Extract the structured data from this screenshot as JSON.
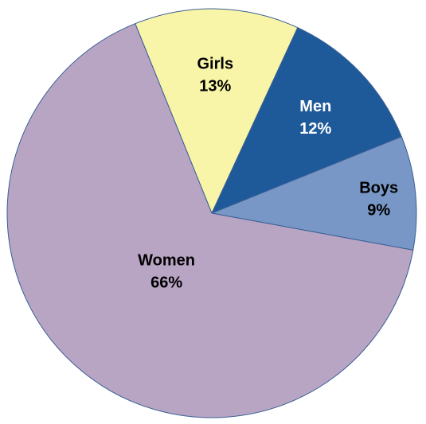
{
  "chart_data": {
    "type": "pie",
    "slices": [
      {
        "label": "Girls",
        "value": 13,
        "value_label": "13%",
        "color": "#f8f5a8",
        "text_color": "#000000"
      },
      {
        "label": "Men",
        "value": 12,
        "value_label": "12%",
        "color": "#1e5a9a",
        "text_color": "#ffffff"
      },
      {
        "label": "Boys",
        "value": 9,
        "value_label": "9%",
        "color": "#7897c6",
        "text_color": "#000000"
      },
      {
        "label": "Women",
        "value": 66,
        "value_label": "66%",
        "color": "#b8a5c4",
        "text_color": "#000000"
      }
    ],
    "start_angle_deg": -112,
    "direction": "clockwise"
  }
}
